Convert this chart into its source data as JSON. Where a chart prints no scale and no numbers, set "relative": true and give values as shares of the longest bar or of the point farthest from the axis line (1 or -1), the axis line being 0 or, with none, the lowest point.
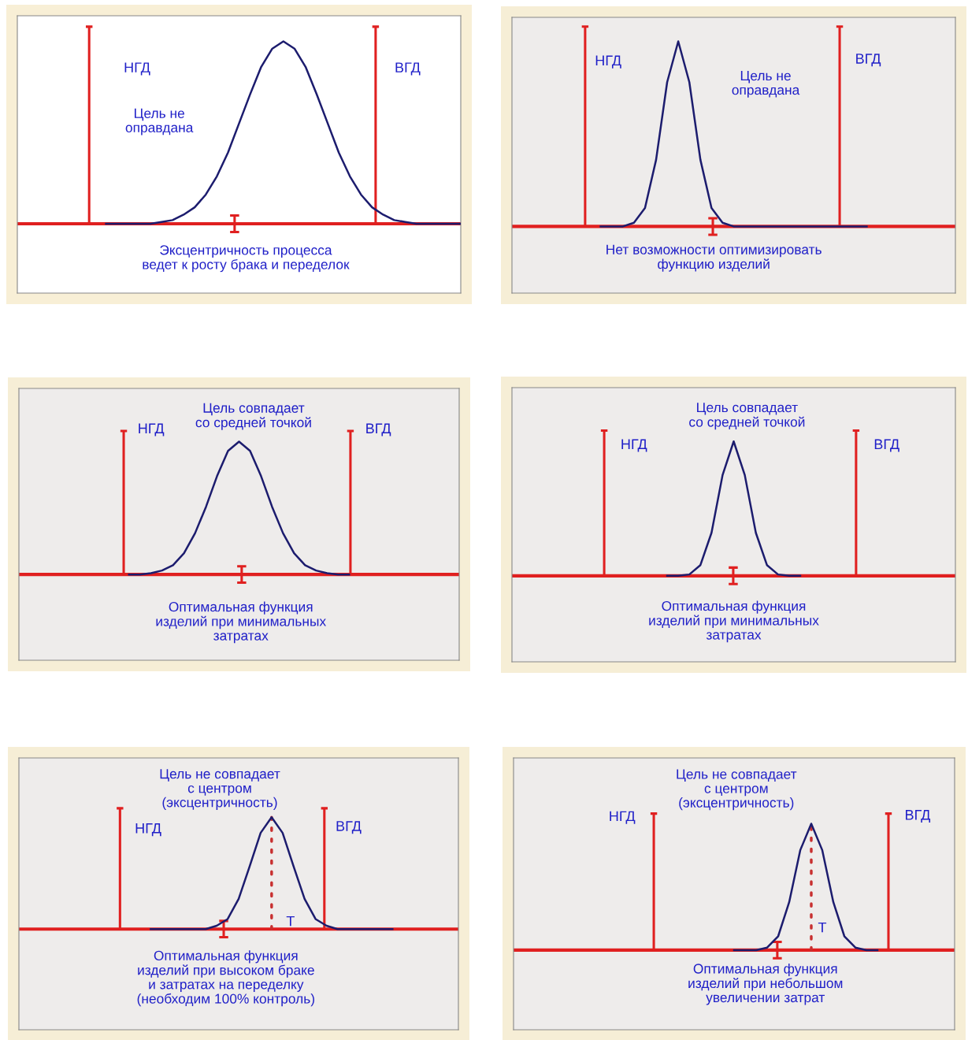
{
  "chart_data": [
    {
      "type": "line",
      "relative": true,
      "categories": [
        null,
        null,
        null,
        null,
        null,
        null,
        null,
        null,
        null,
        null,
        null,
        null,
        null,
        null,
        null,
        null,
        null,
        null,
        null,
        null,
        null,
        null,
        null,
        null,
        null,
        null,
        null,
        null,
        null,
        null,
        null,
        null,
        null
      ],
      "series": [
        {
          "color": "#1c1c6e",
          "values": [
            0,
            0,
            0,
            0,
            0,
            0.01,
            0.02,
            0.05,
            0.09,
            0.16,
            0.26,
            0.39,
            0.55,
            0.71,
            0.86,
            0.96,
            1,
            0.96,
            0.86,
            0.71,
            0.55,
            0.39,
            0.26,
            0.16,
            0.09,
            0.05,
            0.02,
            0.01,
            0,
            0,
            0,
            0,
            0
          ]
        }
      ],
      "ref_lines": [
        {
          "axis": "y",
          "value": 0,
          "color": "#e02020"
        }
      ],
      "annotations": [
        "Цель не\nоправдана",
        "Эксцентричность процесса\nведет к росту брака и переделок",
        "НГД",
        "ВГД"
      ]
    },
    {
      "type": "line",
      "relative": true,
      "categories": [
        null,
        null,
        null,
        null,
        null,
        null,
        null,
        null,
        null,
        null,
        null,
        null,
        null,
        null,
        null,
        null,
        null,
        null,
        null,
        null,
        null,
        null,
        null,
        null,
        null
      ],
      "series": [
        {
          "color": "#1c1c6e",
          "values": [
            0,
            0,
            0,
            0.02,
            0.1,
            0.36,
            0.78,
            1,
            0.78,
            0.36,
            0.1,
            0.02,
            0,
            0,
            0,
            0,
            0,
            0,
            0,
            0,
            0,
            0,
            0,
            0,
            0
          ]
        }
      ],
      "ref_lines": [
        {
          "axis": "y",
          "value": 0,
          "color": "#e02020"
        }
      ],
      "annotations": [
        "Цель не\nоправдана",
        "Нет возможности оптимизировать\nфункцию изделий",
        "НГД",
        "ВГД"
      ]
    },
    {
      "type": "line",
      "relative": true,
      "categories": [
        null,
        null,
        null,
        null,
        null,
        null,
        null,
        null,
        null,
        null,
        null,
        null,
        null,
        null,
        null,
        null,
        null,
        null,
        null,
        null,
        null
      ],
      "series": [
        {
          "color": "#1c1c6e",
          "values": [
            0,
            0,
            0.01,
            0.03,
            0.07,
            0.16,
            0.31,
            0.51,
            0.74,
            0.93,
            1,
            0.93,
            0.74,
            0.51,
            0.31,
            0.16,
            0.07,
            0.03,
            0.01,
            0,
            0
          ]
        }
      ],
      "ref_lines": [
        {
          "axis": "y",
          "value": 0,
          "color": "#e02020"
        }
      ],
      "annotations": [
        "Цель совпадает\nсо средней точкой",
        "Оптимальная функция\nизделий при минимальных\nзатратах",
        "НГД",
        "ВГД"
      ]
    },
    {
      "type": "line",
      "relative": true,
      "categories": [
        null,
        null,
        null,
        null,
        null,
        null,
        null,
        null,
        null,
        null,
        null,
        null,
        null
      ],
      "series": [
        {
          "color": "#1c1c6e",
          "values": [
            0,
            0,
            0.01,
            0.08,
            0.32,
            0.75,
            1,
            0.75,
            0.32,
            0.08,
            0.01,
            0,
            0
          ]
        }
      ],
      "ref_lines": [
        {
          "axis": "y",
          "value": 0,
          "color": "#e02020"
        }
      ],
      "annotations": [
        "Цель совпадает\nсо средней точкой",
        "Оптимальная функция\nизделий при минимальных\nзатратах",
        "НГД",
        "ВГД"
      ]
    },
    {
      "type": "line",
      "relative": true,
      "categories": [
        null,
        null,
        null,
        null,
        null,
        null,
        null,
        null,
        null,
        null,
        null,
        null,
        null,
        null,
        null,
        null,
        null,
        null,
        null,
        null,
        null,
        null,
        null
      ],
      "series": [
        {
          "color": "#1c1c6e",
          "values": [
            0,
            0,
            0,
            0,
            0,
            0,
            0.03,
            0.09,
            0.27,
            0.56,
            0.86,
            1,
            0.86,
            0.56,
            0.27,
            0.09,
            0.03,
            0,
            0,
            0,
            0,
            0,
            0
          ]
        }
      ],
      "ref_lines": [
        {
          "axis": "y",
          "value": 0,
          "color": "#e02020"
        }
      ],
      "annotations": [
        "Цель не совпадает\nс центром\n(эксцентричность)",
        "Оптимальная функция\nизделий при высоком браке\nи затратах на переделку\n(необходим 100% контроль)",
        "НГД",
        "ВГД",
        "T"
      ]
    },
    {
      "type": "line",
      "relative": true,
      "categories": [
        null,
        null,
        null,
        null,
        null,
        null,
        null,
        null,
        null,
        null,
        null,
        null,
        null,
        null
      ],
      "series": [
        {
          "color": "#1c1c6e",
          "values": [
            0,
            0,
            0,
            0.02,
            0.11,
            0.38,
            0.79,
            1,
            0.79,
            0.38,
            0.11,
            0.02,
            0,
            0
          ]
        }
      ],
      "ref_lines": [
        {
          "axis": "y",
          "value": 0,
          "color": "#e02020"
        }
      ],
      "annotations": [
        "Цель не совпадает\nс центром\n(эксцентричность)",
        "Оптимальная функция\nизделий при небольшом\nувеличении затрат",
        "НГД",
        "ВГД",
        "T"
      ]
    }
  ]
}
